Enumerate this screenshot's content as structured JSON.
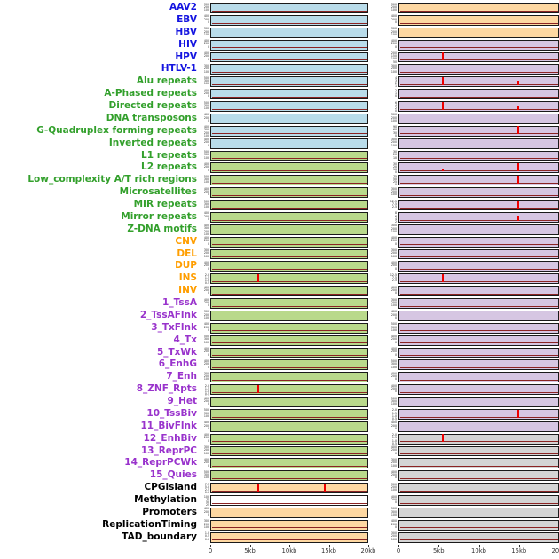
{
  "colors": {
    "label": {
      "blue": "#1414e0",
      "green": "#33a02c",
      "orange": "#ff9e00",
      "purple": "#9933cc",
      "black": "#000000"
    },
    "panel": {
      "lightblue": "#b9dcea",
      "green": "#b9d98b",
      "orange": "#fed8a2",
      "tan": "#fed8a2",
      "purple": "#d6c6e2",
      "gray": "#d4d4d4",
      "white": "#ffffff"
    },
    "baseline": "#8b2323",
    "spike": "#ee0000"
  },
  "chart_data": {
    "type": "line",
    "title": "",
    "description": "Two columns of per-feature genomic signal track panels over a 0-20kb window; flat dark-red baseline with red spikes at enriched positions.",
    "x_axis": {
      "ticks": [
        "0",
        "5kb",
        "10kb",
        "15kb",
        "20kb"
      ],
      "range_kb": [
        0,
        20
      ]
    },
    "rows": [
      {
        "label": "AAV2",
        "lc": "blue",
        "lp": "lightblue",
        "lt": [
          "300",
          "200",
          "100"
        ],
        "ls": [],
        "rp": "tan",
        "rt": [
          "300",
          "200",
          "100"
        ],
        "rs": []
      },
      {
        "label": "EBV",
        "lc": "blue",
        "lp": "lightblue",
        "lt": [
          "400",
          "200",
          "0"
        ],
        "ls": [],
        "rp": "tan",
        "rt": [
          "400",
          "200",
          "0"
        ],
        "rs": []
      },
      {
        "label": "HBV",
        "lc": "blue",
        "lp": "lightblue",
        "lt": [
          "300",
          "200",
          "100"
        ],
        "ls": [],
        "rp": "tan",
        "rt": [
          "300",
          "200",
          "100"
        ],
        "rs": []
      },
      {
        "label": "HIV",
        "lc": "blue",
        "lp": "lightblue",
        "lt": [
          "400",
          "200",
          "0"
        ],
        "ls": [],
        "rp": "purple",
        "rt": [
          "400",
          "200",
          "0"
        ],
        "rs": []
      },
      {
        "label": "HPV",
        "lc": "blue",
        "lp": "lightblue",
        "lt": [
          "400",
          "200",
          "0"
        ],
        "ls": [],
        "rp": "purple",
        "rt": [
          "200",
          "150",
          "100",
          "50",
          "0"
        ],
        "rs": [
          {
            "kb": 5.5,
            "h": 0.92
          }
        ]
      },
      {
        "label": "HTLV-1",
        "lc": "blue",
        "lp": "lightblue",
        "lt": [
          "300",
          "200",
          "100"
        ],
        "ls": [],
        "rp": "purple",
        "rt": [
          "300",
          "200",
          "100"
        ],
        "rs": []
      },
      {
        "label": "Alu repeats",
        "lc": "green",
        "lp": "lightblue",
        "lt": [
          "500",
          "300",
          "100"
        ],
        "ls": [],
        "rp": "purple",
        "rt": [
          "4",
          "3",
          "2",
          "1"
        ],
        "rs": [
          {
            "kb": 5.5,
            "h": 0.92
          },
          {
            "kb": 15,
            "h": 0.5
          }
        ]
      },
      {
        "label": "A-Phased repeats",
        "lc": "green",
        "lp": "lightblue",
        "lt": [
          "400",
          "200",
          "0"
        ],
        "ls": [],
        "rp": "purple",
        "rt": [
          "2",
          "1",
          "0"
        ],
        "rs": []
      },
      {
        "label": "Directed repeats",
        "lc": "green",
        "lp": "lightblue",
        "lt": [
          "500",
          "300",
          "100"
        ],
        "ls": [],
        "rp": "purple",
        "rt": [
          "6",
          "4",
          "2",
          "0"
        ],
        "rs": [
          {
            "kb": 5.5,
            "h": 0.92
          },
          {
            "kb": 15,
            "h": 0.45
          }
        ]
      },
      {
        "label": "DNA transposons",
        "lc": "green",
        "lp": "lightblue",
        "lt": [
          "400",
          "200",
          "0"
        ],
        "ls": [],
        "rp": "purple",
        "rt": [
          "300",
          "200",
          "100"
        ],
        "rs": []
      },
      {
        "label": "G-Quadruplex forming repeats",
        "lc": "green",
        "lp": "lightblue",
        "lt": [
          "400",
          "300",
          "200",
          "100"
        ],
        "ls": [],
        "rp": "purple",
        "rt": [
          "90",
          "60",
          "30",
          "0"
        ],
        "rs": [
          {
            "kb": 15,
            "h": 0.92
          }
        ]
      },
      {
        "label": "Inverted repeats",
        "lc": "green",
        "lp": "lightblue",
        "lt": [
          "400",
          "200",
          "0"
        ],
        "ls": [],
        "rp": "purple",
        "rt": [
          "300",
          "200",
          "100"
        ],
        "rs": []
      },
      {
        "label": "L1 repeats",
        "lc": "green",
        "lp": "green",
        "lt": [
          "500",
          "300",
          "100"
        ],
        "ls": [],
        "rp": "purple",
        "rt": [
          "30",
          "20",
          "10"
        ],
        "rs": []
      },
      {
        "label": "L2 repeats",
        "lc": "green",
        "lp": "green",
        "lt": [
          "400",
          "200",
          "0"
        ],
        "ls": [],
        "rp": "purple",
        "rt": [
          "30",
          "20",
          "10",
          "0"
        ],
        "rs": [
          {
            "kb": 5.5,
            "h": 0.2
          },
          {
            "kb": 15,
            "h": 0.92
          }
        ]
      },
      {
        "label": "Low_complexity A/T rich regions",
        "lc": "green",
        "lp": "green",
        "lt": [
          "500",
          "300",
          "100"
        ],
        "ls": [],
        "rp": "purple",
        "rt": [
          "75",
          "50",
          "25",
          "0"
        ],
        "rs": [
          {
            "kb": 15,
            "h": 0.92
          }
        ]
      },
      {
        "label": "Microsatellites",
        "lc": "green",
        "lp": "green",
        "lt": [
          "400",
          "200",
          "0"
        ],
        "ls": [],
        "rp": "purple",
        "rt": [
          "300",
          "200",
          "100"
        ],
        "rs": []
      },
      {
        "label": "MIR repeats",
        "lc": "green",
        "lp": "green",
        "lt": [
          "500",
          "300",
          "100"
        ],
        "ls": [],
        "rp": "purple",
        "rt": [
          "12.5",
          "7.5",
          "2.5"
        ],
        "rs": [
          {
            "kb": 15,
            "h": 0.9
          }
        ]
      },
      {
        "label": "Mirror repeats",
        "lc": "green",
        "lp": "green",
        "lt": [
          "400",
          "200",
          "0"
        ],
        "ls": [],
        "rp": "purple",
        "rt": [
          "8",
          "6",
          "4",
          "2"
        ],
        "rs": [
          {
            "kb": 15,
            "h": 0.55
          }
        ]
      },
      {
        "label": "Z-DNA motifs",
        "lc": "green",
        "lp": "green",
        "lt": [
          "400",
          "300",
          "200",
          "100"
        ],
        "ls": [],
        "rp": "purple",
        "rt": [
          "300",
          "200",
          "100"
        ],
        "rs": []
      },
      {
        "label": "CNV",
        "lc": "orange",
        "lp": "green",
        "lt": [
          "400",
          "200",
          "0"
        ],
        "ls": [],
        "rp": "purple",
        "rt": [
          "400",
          "200",
          "0"
        ],
        "rs": []
      },
      {
        "label": "DEL",
        "lc": "orange",
        "lp": "green",
        "lt": [
          "300",
          "200",
          "100"
        ],
        "ls": [],
        "rp": "purple",
        "rt": [
          "300",
          "200",
          "100"
        ],
        "rs": []
      },
      {
        "label": "DUP",
        "lc": "orange",
        "lp": "green",
        "lt": [
          "400",
          "200",
          "0"
        ],
        "ls": [],
        "rp": "purple",
        "rt": [
          "400",
          "200",
          "0"
        ],
        "rs": []
      },
      {
        "label": "INS",
        "lc": "orange",
        "lp": "green",
        "lt": [
          "2.0",
          "1.5",
          "1.0",
          "0.5",
          "0.0"
        ],
        "ls": [
          {
            "kb": 6,
            "h": 0.92
          }
        ],
        "rp": "purple",
        "rt": [
          "12.5",
          "7.5",
          "2.5"
        ],
        "rs": [
          {
            "kb": 5.5,
            "h": 0.92
          }
        ]
      },
      {
        "label": "INV",
        "lc": "orange",
        "lp": "green",
        "lt": [
          "400",
          "200",
          "0"
        ],
        "ls": [],
        "rp": "purple",
        "rt": [
          "400",
          "200",
          "0"
        ],
        "rs": []
      },
      {
        "label": "1_TssA",
        "lc": "purple",
        "lp": "green",
        "lt": [
          "400",
          "200",
          "0"
        ],
        "ls": [],
        "rp": "purple",
        "rt": [
          "300",
          "200",
          "100"
        ],
        "rs": []
      },
      {
        "label": "2_TssAFlnk",
        "lc": "purple",
        "lp": "green",
        "lt": [
          "300",
          "200",
          "100"
        ],
        "ls": [],
        "rp": "purple",
        "rt": [
          "400",
          "200",
          "0"
        ],
        "rs": []
      },
      {
        "label": "3_TxFlnk",
        "lc": "purple",
        "lp": "green",
        "lt": [
          "400",
          "200",
          "0"
        ],
        "ls": [],
        "rp": "purple",
        "rt": [
          "500",
          "300",
          "100"
        ],
        "rs": []
      },
      {
        "label": "4_Tx",
        "lc": "purple",
        "lp": "green",
        "lt": [
          "500",
          "300",
          "100"
        ],
        "ls": [],
        "rp": "purple",
        "rt": [
          "400",
          "200",
          "0"
        ],
        "rs": []
      },
      {
        "label": "5_TxWk",
        "lc": "purple",
        "lp": "green",
        "lt": [
          "400",
          "200",
          "0"
        ],
        "ls": [],
        "rp": "purple",
        "rt": [
          "400",
          "200",
          "0"
        ],
        "rs": []
      },
      {
        "label": "6_EnhG",
        "lc": "purple",
        "lp": "green",
        "lt": [
          "400",
          "200",
          "0"
        ],
        "ls": [],
        "rp": "purple",
        "rt": [
          "500",
          "300",
          "100"
        ],
        "rs": []
      },
      {
        "label": "7_Enh",
        "lc": "purple",
        "lp": "green",
        "lt": [
          "300",
          "200",
          "100"
        ],
        "ls": [],
        "rp": "purple",
        "rt": [
          "400",
          "200",
          "0"
        ],
        "rs": []
      },
      {
        "label": "8_ZNF_Rpts",
        "lc": "purple",
        "lp": "green",
        "lt": [
          "2.0",
          "1.5",
          "1.0",
          "0.5",
          "0.0"
        ],
        "ls": [
          {
            "kb": 6,
            "h": 0.92
          }
        ],
        "rp": "purple",
        "rt": [
          "400",
          "200",
          "0"
        ],
        "rs": []
      },
      {
        "label": "9_Het",
        "lc": "purple",
        "lp": "green",
        "lt": [
          "400",
          "200",
          "0"
        ],
        "ls": [],
        "rp": "purple",
        "rt": [
          "500",
          "300",
          "100"
        ],
        "rs": []
      },
      {
        "label": "10_TssBiv",
        "lc": "purple",
        "lp": "green",
        "lt": [
          "500",
          "300",
          "100"
        ],
        "ls": [],
        "rp": "purple",
        "rt": [
          "2.0",
          "1.5",
          "1.0",
          "0.5",
          "0.0"
        ],
        "rs": [
          {
            "kb": 15,
            "h": 0.9
          }
        ]
      },
      {
        "label": "11_BivFlnk",
        "lc": "purple",
        "lp": "green",
        "lt": [
          "400",
          "200",
          "0"
        ],
        "ls": [],
        "rp": "purple",
        "rt": [
          "400",
          "200",
          "0"
        ],
        "rs": []
      },
      {
        "label": "12_EnhBiv",
        "lc": "purple",
        "lp": "green",
        "lt": [
          "400",
          "200",
          "0"
        ],
        "ls": [],
        "rp": "gray",
        "rt": [
          "2.0",
          "1.5",
          "1.0",
          "0.5",
          "0.0"
        ],
        "rs": [
          {
            "kb": 5.5,
            "h": 0.9
          }
        ]
      },
      {
        "label": "13_ReprPC",
        "lc": "purple",
        "lp": "green",
        "lt": [
          "300",
          "200",
          "100"
        ],
        "ls": [],
        "rp": "gray",
        "rt": [
          "400",
          "200",
          "0"
        ],
        "rs": []
      },
      {
        "label": "14_ReprPCWk",
        "lc": "purple",
        "lp": "green",
        "lt": [
          "400",
          "200",
          "0"
        ],
        "ls": [],
        "rp": "gray",
        "rt": [
          "300",
          "200",
          "100"
        ],
        "rs": []
      },
      {
        "label": "15_Quies",
        "lc": "purple",
        "lp": "green",
        "lt": [
          "500",
          "300",
          "100"
        ],
        "ls": [],
        "rp": "gray",
        "rt": [
          "400",
          "200",
          "0"
        ],
        "rs": []
      },
      {
        "label": "CPGisland",
        "lc": "black",
        "lp": "orange",
        "lt": [
          "7.5",
          "5.0",
          "2.5",
          "0.0"
        ],
        "ls": [
          {
            "kb": 6,
            "h": 0.88
          },
          {
            "kb": 14.5,
            "h": 0.8
          }
        ],
        "rp": "gray",
        "rt": [
          "300",
          "200",
          "100"
        ],
        "rs": []
      },
      {
        "label": "Methylation",
        "lc": "black",
        "lp": "white",
        "lt": [
          "100",
          "75",
          "50",
          "25"
        ],
        "ls": [],
        "rp": "gray",
        "rt": [
          "400",
          "200",
          "0"
        ],
        "rs": []
      },
      {
        "label": "Promoters",
        "lc": "black",
        "lp": "orange",
        "lt": [
          "400",
          "200",
          "0"
        ],
        "ls": [],
        "rp": "gray",
        "rt": [
          "500",
          "300",
          "100"
        ],
        "rs": []
      },
      {
        "label": "ReplicationTiming",
        "lc": "black",
        "lp": "orange",
        "lt": [
          "300",
          "200",
          "100"
        ],
        "ls": [],
        "rp": "gray",
        "rt": [
          "400",
          "200",
          "0"
        ],
        "rs": []
      },
      {
        "label": "TAD_boundary",
        "lc": "black",
        "lp": "orange",
        "lt": [
          "1.0",
          "0.5",
          "0.0"
        ],
        "ls": [],
        "rp": "gray",
        "rt": [
          "300",
          "200",
          "100"
        ],
        "rs": []
      }
    ]
  }
}
